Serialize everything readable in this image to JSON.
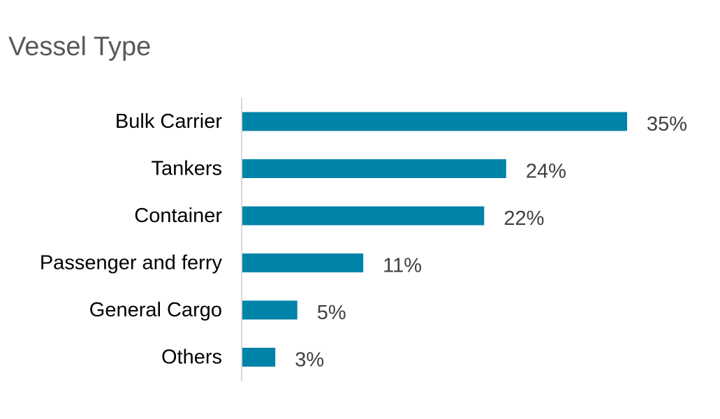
{
  "chart_data": {
    "type": "bar",
    "orientation": "horizontal",
    "title": "Vessel Type",
    "categories": [
      "Bulk Carrier",
      "Tankers",
      "Container",
      "Passenger and ferry",
      "General Cargo",
      "Others"
    ],
    "values": [
      35,
      24,
      22,
      11,
      5,
      3
    ],
    "value_labels": [
      "35%",
      "24%",
      "22%",
      "11%",
      "5%",
      "3%"
    ],
    "unit": "%",
    "xlabel": "",
    "ylabel": "",
    "xlim": [
      0,
      35
    ],
    "grid": false,
    "legend": "none",
    "colors": {
      "bar": "#0083A9",
      "axis": "#D9D9D9",
      "title": "#595959",
      "category_text": "#000000",
      "value_text": "#404040"
    }
  }
}
